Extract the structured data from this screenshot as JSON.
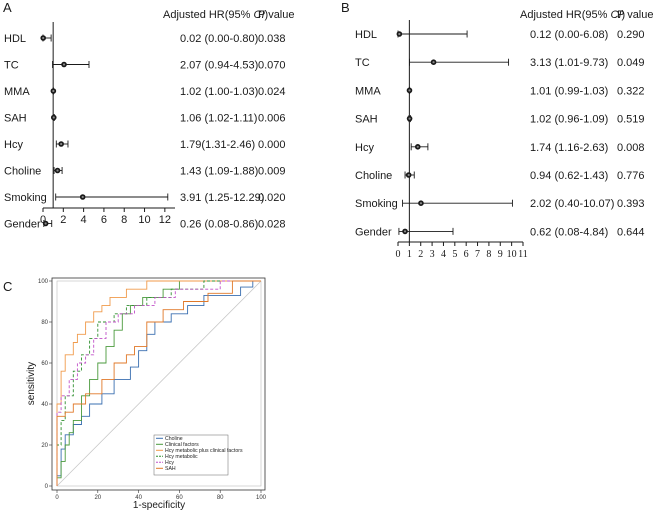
{
  "chart_data": [
    {
      "type": "forest",
      "panel": "A",
      "header": {
        "hr": "Adjusted HR(95% ",
        "ci": "CI",
        "close": ")",
        "p": "P value"
      },
      "rows": [
        {
          "label": "HDL",
          "hr": 0.02,
          "lo": 0.0,
          "hi": 0.8,
          "text": "0.02 (0.00-0.80)",
          "p": "0.038"
        },
        {
          "label": "TC",
          "hr": 2.07,
          "lo": 0.94,
          "hi": 4.53,
          "text": "2.07 (0.94-4.53)",
          "p": "0.070"
        },
        {
          "label": "MMA",
          "hr": 1.02,
          "lo": 1.0,
          "hi": 1.03,
          "text": "1.02 (1.00-1.03)",
          "p": "0.024"
        },
        {
          "label": "SAH",
          "hr": 1.06,
          "lo": 1.02,
          "hi": 1.11,
          "text": "1.06 (1.02-1.11)",
          "p": "0.006"
        },
        {
          "label": "Hcy",
          "hr": 1.79,
          "lo": 1.31,
          "hi": 2.46,
          "text": "1.79(1.31-2.46)",
          "p": "0.000"
        },
        {
          "label": "Choline",
          "hr": 1.43,
          "lo": 1.09,
          "hi": 1.88,
          "text": "1.43 (1.09-1.88)",
          "p": "0.009"
        },
        {
          "label": "Smoking",
          "hr": 3.91,
          "lo": 1.25,
          "hi": 12.29,
          "text": "3.91 (1.25-12.29)",
          "p": "0.020"
        },
        {
          "label": "Gender",
          "hr": 0.26,
          "lo": 0.08,
          "hi": 0.86,
          "text": "0.26 (0.08-0.86)",
          "p": "0.028"
        }
      ],
      "xlim": [
        0,
        13
      ],
      "xticks": [
        0,
        2,
        4,
        6,
        8,
        10,
        12
      ],
      "refline": 1
    },
    {
      "type": "forest",
      "panel": "B",
      "header": {
        "hr": "Adjusted HR(95% ",
        "ci": "CI",
        "close": ")",
        "p": "P value"
      },
      "rows": [
        {
          "label": "HDL",
          "hr": 0.12,
          "lo": 0.0,
          "hi": 6.08,
          "text": "0.12 (0.00-6.08)",
          "p": "0.290"
        },
        {
          "label": "TC",
          "hr": 3.13,
          "lo": 1.01,
          "hi": 9.73,
          "text": "3.13 (1.01-9.73)",
          "p": "0.049"
        },
        {
          "label": "MMA",
          "hr": 1.01,
          "lo": 0.99,
          "hi": 1.03,
          "text": "1.01 (0.99-1.03)",
          "p": "0.322"
        },
        {
          "label": "SAH",
          "hr": 1.02,
          "lo": 0.96,
          "hi": 1.09,
          "text": "1.02 (0.96-1.09)",
          "p": "0.519"
        },
        {
          "label": "Hcy",
          "hr": 1.74,
          "lo": 1.16,
          "hi": 2.63,
          "text": "1.74 (1.16-2.63)",
          "p": "0.008"
        },
        {
          "label": "Choline",
          "hr": 0.94,
          "lo": 0.62,
          "hi": 1.43,
          "text": "0.94 (0.62-1.43)",
          "p": "0.776"
        },
        {
          "label": "Smoking",
          "hr": 2.02,
          "lo": 0.4,
          "hi": 10.07,
          "text": "2.02 (0.40-10.07)",
          "p": "0.393"
        },
        {
          "label": "Gender",
          "hr": 0.62,
          "lo": 0.08,
          "hi": 4.84,
          "text": "0.62 (0.08-4.84)",
          "p": "0.644"
        }
      ],
      "xlim": [
        0,
        11
      ],
      "xticks": [
        0,
        1,
        2,
        3,
        4,
        5,
        6,
        7,
        8,
        9,
        10,
        11
      ],
      "refline": 1
    },
    {
      "type": "line",
      "panel": "C",
      "xlabel": "1-specificity",
      "ylabel": "sensitivity",
      "xlim": [
        0,
        100
      ],
      "ylim": [
        0,
        100
      ],
      "xticks": [
        0,
        20,
        40,
        60,
        80,
        100
      ],
      "yticks": [
        0,
        20,
        40,
        60,
        80,
        100
      ],
      "series": [
        {
          "name": "Choline",
          "color": "#3a6fb0",
          "dash": "",
          "points": [
            [
              0,
              0
            ],
            [
              0,
              5
            ],
            [
              2,
              5
            ],
            [
              2,
              18
            ],
            [
              4,
              18
            ],
            [
              4,
              25
            ],
            [
              8,
              25
            ],
            [
              8,
              30
            ],
            [
              12,
              30
            ],
            [
              12,
              34
            ],
            [
              16,
              34
            ],
            [
              16,
              40
            ],
            [
              22,
              40
            ],
            [
              22,
              45
            ],
            [
              28,
              45
            ],
            [
              28,
              52
            ],
            [
              36,
              52
            ],
            [
              36,
              58
            ],
            [
              40,
              58
            ],
            [
              40,
              66
            ],
            [
              44,
              66
            ],
            [
              44,
              74
            ],
            [
              48,
              74
            ],
            [
              48,
              80
            ],
            [
              56,
              80
            ],
            [
              56,
              84
            ],
            [
              64,
              84
            ],
            [
              64,
              88
            ],
            [
              72,
              88
            ],
            [
              72,
              93
            ],
            [
              90,
              93
            ],
            [
              90,
              97
            ],
            [
              96,
              97
            ],
            [
              96,
              100
            ],
            [
              100,
              100
            ]
          ]
        },
        {
          "name": "Clinical factors",
          "color": "#4a9a3c",
          "dash": "",
          "points": [
            [
              0,
              0
            ],
            [
              0,
              4
            ],
            [
              2,
              4
            ],
            [
              2,
              12
            ],
            [
              4,
              12
            ],
            [
              4,
              20
            ],
            [
              6,
              20
            ],
            [
              6,
              26
            ],
            [
              8,
              26
            ],
            [
              8,
              32
            ],
            [
              12,
              32
            ],
            [
              12,
              44
            ],
            [
              16,
              44
            ],
            [
              16,
              52
            ],
            [
              20,
              52
            ],
            [
              20,
              60
            ],
            [
              24,
              60
            ],
            [
              24,
              68
            ],
            [
              28,
              68
            ],
            [
              28,
              76
            ],
            [
              32,
              76
            ],
            [
              32,
              84
            ],
            [
              36,
              84
            ],
            [
              36,
              88
            ],
            [
              42,
              88
            ],
            [
              42,
              92
            ],
            [
              52,
              92
            ],
            [
              52,
              96
            ],
            [
              60,
              96
            ],
            [
              60,
              100
            ],
            [
              100,
              100
            ]
          ]
        },
        {
          "name": "Hcy metabolic plus clinical factors",
          "color": "#f09a4a",
          "dash": "",
          "points": [
            [
              0,
              0
            ],
            [
              0,
              40
            ],
            [
              2,
              40
            ],
            [
              2,
              56
            ],
            [
              4,
              56
            ],
            [
              4,
              64
            ],
            [
              8,
              64
            ],
            [
              8,
              70
            ],
            [
              10,
              70
            ],
            [
              10,
              74
            ],
            [
              14,
              74
            ],
            [
              14,
              80
            ],
            [
              18,
              80
            ],
            [
              18,
              85
            ],
            [
              22,
              85
            ],
            [
              22,
              88
            ],
            [
              26,
              88
            ],
            [
              26,
              92
            ],
            [
              34,
              92
            ],
            [
              34,
              96
            ],
            [
              44,
              96
            ],
            [
              44,
              100
            ],
            [
              100,
              100
            ]
          ]
        },
        {
          "name": "Hcy metabolic",
          "color": "#2f8f2f",
          "dash": "3,2",
          "points": [
            [
              0,
              0
            ],
            [
              0,
              20
            ],
            [
              2,
              20
            ],
            [
              2,
              32
            ],
            [
              4,
              32
            ],
            [
              4,
              44
            ],
            [
              8,
              44
            ],
            [
              8,
              56
            ],
            [
              12,
              56
            ],
            [
              12,
              64
            ],
            [
              16,
              64
            ],
            [
              16,
              72
            ],
            [
              20,
              72
            ],
            [
              20,
              80
            ],
            [
              28,
              80
            ],
            [
              28,
              84
            ],
            [
              34,
              84
            ],
            [
              34,
              88
            ],
            [
              44,
              88
            ],
            [
              44,
              92
            ],
            [
              56,
              92
            ],
            [
              56,
              96
            ],
            [
              72,
              96
            ],
            [
              72,
              100
            ],
            [
              100,
              100
            ]
          ]
        },
        {
          "name": "Hcy",
          "color": "#c050c8",
          "dash": "3,2",
          "points": [
            [
              0,
              0
            ],
            [
              0,
              36
            ],
            [
              2,
              36
            ],
            [
              2,
              44
            ],
            [
              6,
              44
            ],
            [
              6,
              52
            ],
            [
              10,
              52
            ],
            [
              10,
              60
            ],
            [
              14,
              60
            ],
            [
              14,
              64
            ],
            [
              18,
              64
            ],
            [
              18,
              72
            ],
            [
              24,
              72
            ],
            [
              24,
              80
            ],
            [
              30,
              80
            ],
            [
              30,
              84
            ],
            [
              38,
              84
            ],
            [
              38,
              88
            ],
            [
              48,
              88
            ],
            [
              48,
              92
            ],
            [
              58,
              92
            ],
            [
              58,
              96
            ],
            [
              80,
              96
            ],
            [
              80,
              100
            ],
            [
              100,
              100
            ]
          ]
        },
        {
          "name": "SAH",
          "color": "#e07828",
          "dash": "",
          "points": [
            [
              0,
              0
            ],
            [
              0,
              34
            ],
            [
              4,
              34
            ],
            [
              4,
              36
            ],
            [
              8,
              36
            ],
            [
              8,
              40
            ],
            [
              14,
              40
            ],
            [
              14,
              45
            ],
            [
              22,
              45
            ],
            [
              22,
              52
            ],
            [
              28,
              52
            ],
            [
              28,
              60
            ],
            [
              34,
              60
            ],
            [
              34,
              64
            ],
            [
              38,
              64
            ],
            [
              38,
              68
            ],
            [
              44,
              68
            ],
            [
              44,
              80
            ],
            [
              52,
              80
            ],
            [
              52,
              86
            ],
            [
              62,
              86
            ],
            [
              62,
              90
            ],
            [
              74,
              90
            ],
            [
              74,
              94
            ],
            [
              86,
              94
            ],
            [
              86,
              100
            ],
            [
              100,
              100
            ]
          ]
        }
      ],
      "reference_diagonal": true
    }
  ]
}
